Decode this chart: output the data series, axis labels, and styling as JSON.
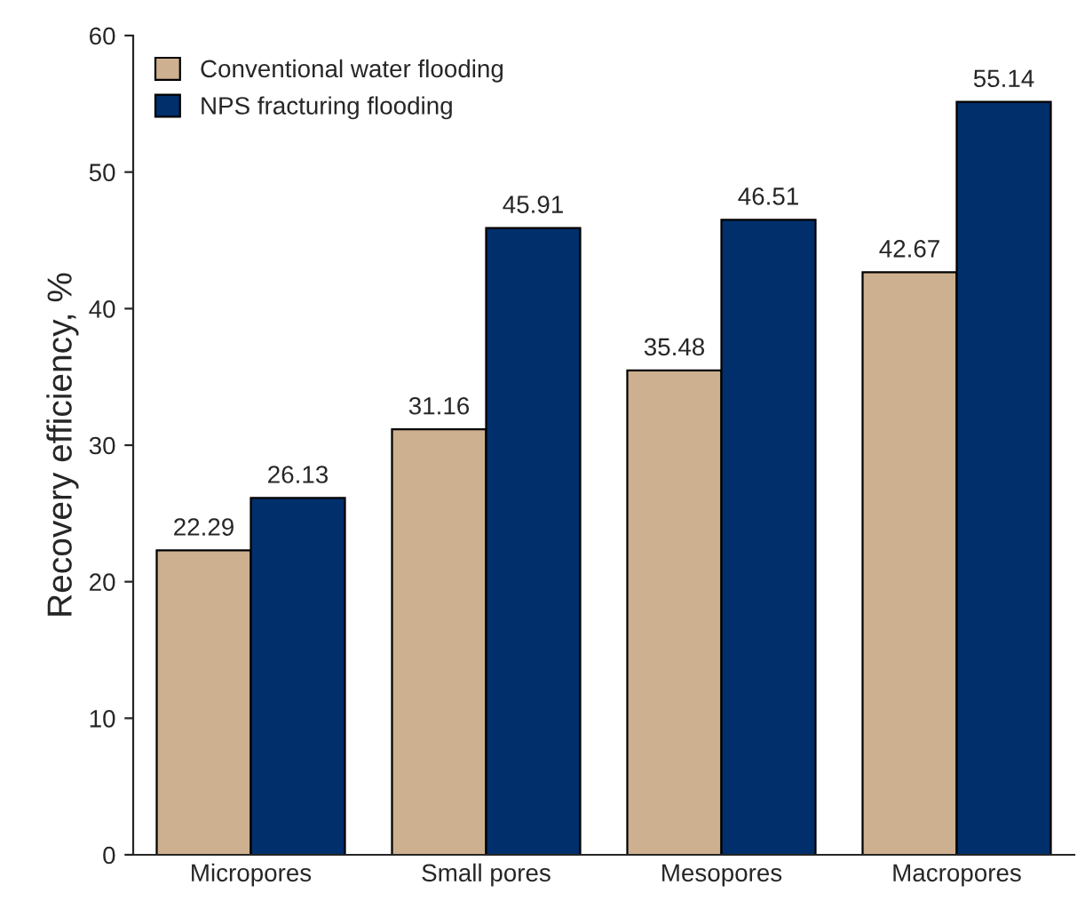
{
  "chart_data": {
    "type": "bar",
    "ylabel": "Recovery efficiency, %",
    "categories": [
      "Micropores",
      "Small pores",
      "Mesopores",
      "Macropores"
    ],
    "series": [
      {
        "name": "Conventional water flooding",
        "color": "#cdb08f",
        "values": [
          22.29,
          31.16,
          35.48,
          42.67
        ]
      },
      {
        "name": "NPS fracturing flooding",
        "color": "#002f6c",
        "values": [
          26.13,
          45.91,
          46.51,
          55.14
        ]
      }
    ],
    "ylim": [
      0,
      60
    ],
    "yticks": [
      0,
      10,
      20,
      30,
      40,
      50,
      60
    ],
    "data_labels": true,
    "legend": "top left",
    "grid": false
  }
}
